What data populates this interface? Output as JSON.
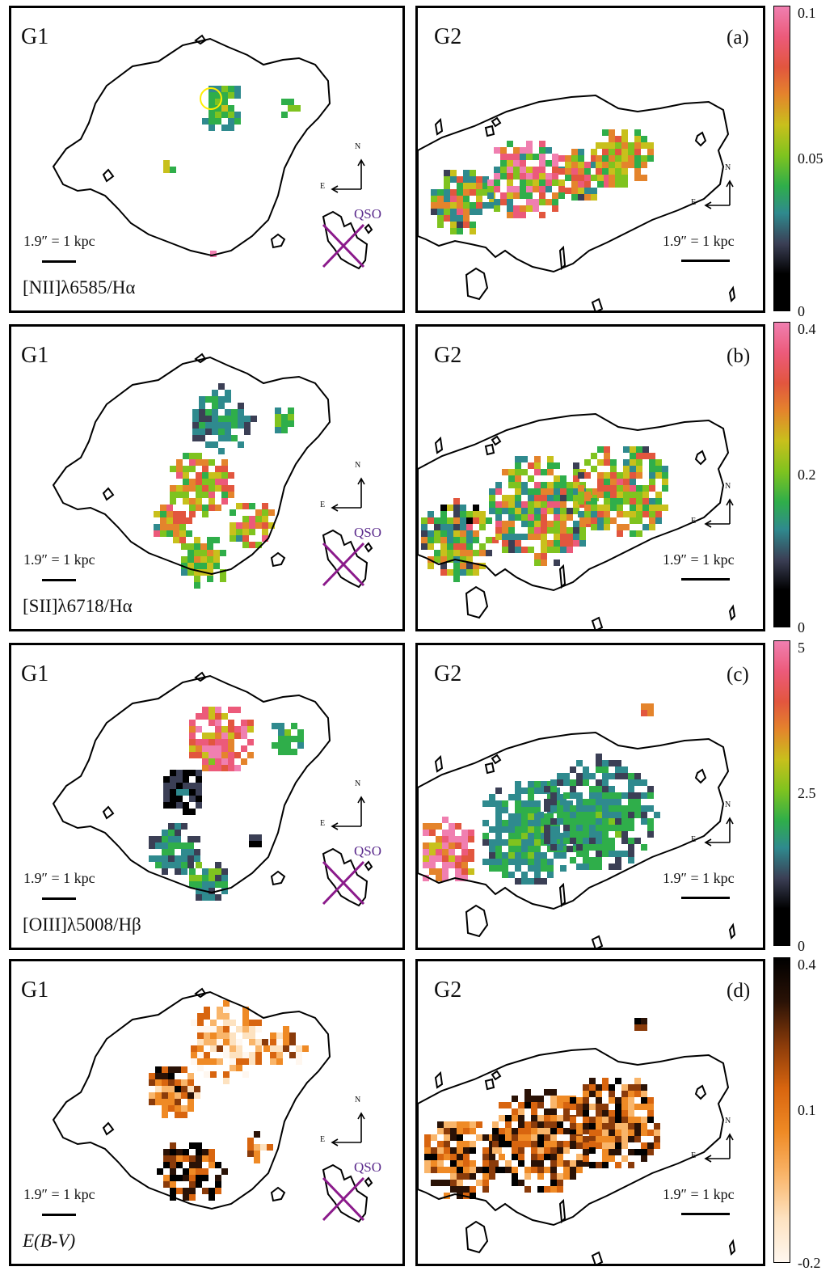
{
  "rows": [
    {
      "letter": "(a)",
      "ratio_label": "[NII]λ6585/Hα",
      "ratio_italic": false,
      "colorbar": {
        "scheme": "rainbow",
        "ticks": [
          "0.1",
          "0.05",
          "0"
        ],
        "min": 0,
        "max": 0.1
      }
    },
    {
      "letter": "(b)",
      "ratio_label": "[SII]λ6718/Hα",
      "ratio_italic": false,
      "colorbar": {
        "scheme": "rainbow",
        "ticks": [
          "0.4",
          "0.2",
          "0"
        ],
        "min": 0,
        "max": 0.4
      }
    },
    {
      "letter": "(c)",
      "ratio_label": "[OIII]λ5008/Hβ",
      "ratio_italic": false,
      "colorbar": {
        "scheme": "rainbow",
        "ticks": [
          "5",
          "2.5",
          "0"
        ],
        "min": 0,
        "max": 5
      }
    },
    {
      "letter": "(d)",
      "ratio_label": "E(B-V)",
      "ratio_italic": true,
      "colorbar": {
        "scheme": "heat",
        "ticks": [
          "0.4",
          "0.1",
          "-0.2"
        ],
        "min": -0.2,
        "max": 0.4
      }
    }
  ],
  "galaxies": {
    "left": "G1",
    "right": "G2"
  },
  "scale_label": "1.9″ = 1 kpc",
  "compass": {
    "north": "N",
    "east": "E"
  },
  "qso_label": "QSO",
  "colors": {
    "contour": "#000000",
    "qso_mark": "#8b1a8b",
    "aperture": "#ffee00",
    "rainbow": [
      "#000000",
      "#3b3f55",
      "#2f8a8e",
      "#2fae4a",
      "#7fc31f",
      "#c8c01c",
      "#e4842c",
      "#e2563e",
      "#ec5a7a",
      "#f07fb0"
    ],
    "heat": [
      "#fff7ef",
      "#fde2c0",
      "#f9b56a",
      "#ef8a25",
      "#d8650f",
      "#8a3b0a",
      "#2a1206",
      "#000000"
    ]
  }
}
